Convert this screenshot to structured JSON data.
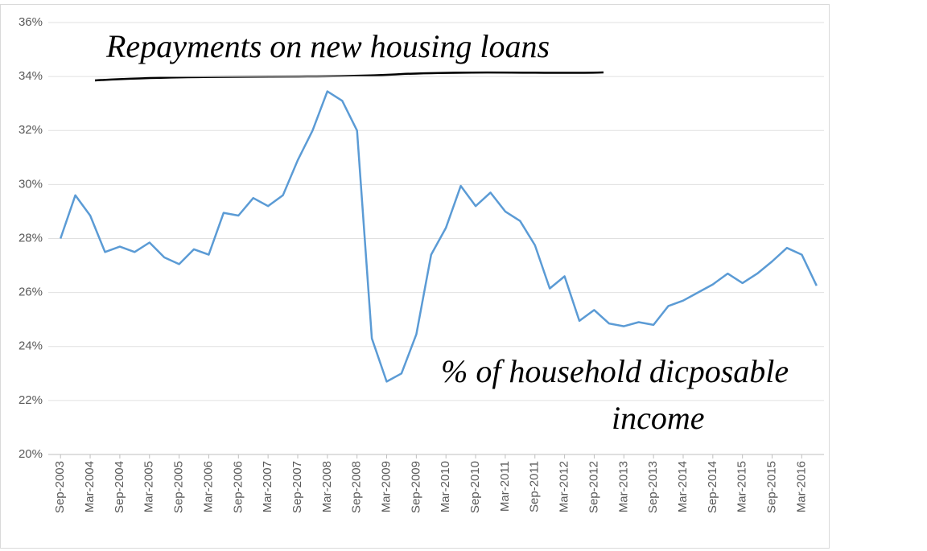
{
  "chart_data": {
    "type": "line",
    "annotations": [
      "Repayments on new housing loans",
      "% of household dicposable income"
    ],
    "categories": [
      "Sep-2003",
      null,
      "Mar-2004",
      null,
      "Sep-2004",
      null,
      "Mar-2005",
      null,
      "Sep-2005",
      null,
      "Mar-2006",
      null,
      "Sep-2006",
      null,
      "Mar-2007",
      null,
      "Sep-2007",
      null,
      "Mar-2008",
      null,
      "Sep-2008",
      null,
      "Mar-2009",
      null,
      "Sep-2009",
      null,
      "Mar-2010",
      null,
      "Sep-2010",
      null,
      "Mar-2011",
      null,
      "Sep-2011",
      null,
      "Mar-2012",
      null,
      "Sep-2012",
      null,
      "Mar-2013",
      null,
      "Sep-2013",
      null,
      "Mar-2014",
      null,
      "Sep-2014",
      null,
      "Mar-2015",
      null,
      "Sep-2015",
      null,
      "Mar-2016",
      null
    ],
    "values": [
      28.0,
      29.6,
      28.85,
      27.5,
      27.7,
      27.5,
      27.85,
      27.3,
      27.05,
      27.6,
      27.4,
      28.95,
      28.85,
      29.5,
      29.2,
      29.6,
      30.9,
      32.0,
      33.45,
      33.1,
      32.0,
      24.3,
      22.7,
      23.0,
      24.45,
      27.4,
      28.4,
      29.95,
      29.2,
      29.7,
      29.0,
      28.65,
      27.75,
      26.15,
      26.6,
      24.95,
      25.35,
      24.85,
      24.75,
      24.9,
      24.8,
      25.5,
      25.7,
      26.0,
      26.3,
      26.7,
      26.35,
      26.7,
      27.15,
      27.65,
      27.4,
      26.25
    ],
    "color": "#5b9bd5",
    "ylim": [
      20,
      36
    ],
    "yticks": [
      {
        "value": 20,
        "label": "20%"
      },
      {
        "value": 22,
        "label": "22%"
      },
      {
        "value": 24,
        "label": "24%"
      },
      {
        "value": 26,
        "label": "26%"
      },
      {
        "value": 28,
        "label": "28%"
      },
      {
        "value": 30,
        "label": "30%"
      },
      {
        "value": 32,
        "label": "32%"
      },
      {
        "value": 34,
        "label": "34%"
      },
      {
        "value": 36,
        "label": "36%"
      }
    ],
    "grid": true
  }
}
